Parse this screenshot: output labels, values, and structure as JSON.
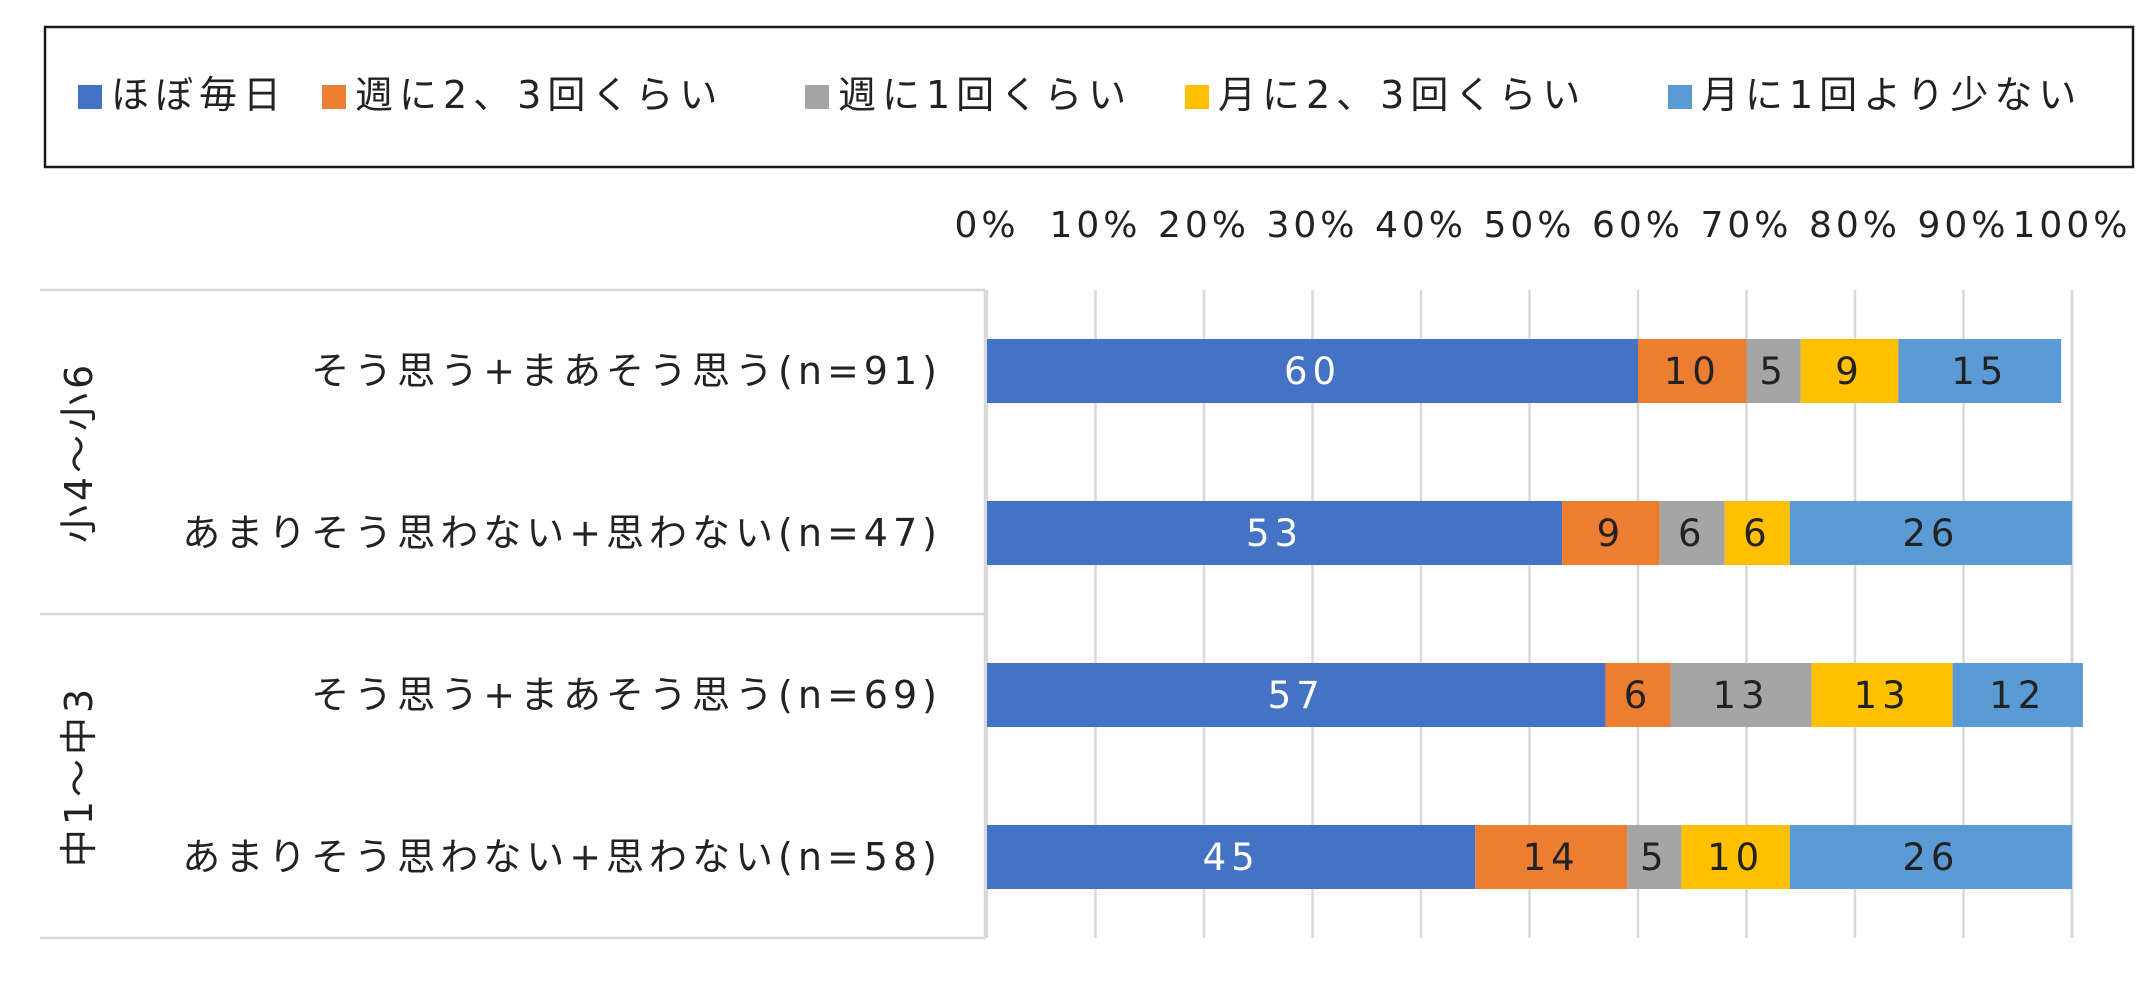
{
  "chart_data": {
    "type": "bar",
    "orientation": "horizontal",
    "stacked": true,
    "percent": true,
    "xlim": [
      0,
      100
    ],
    "x_ticks": [
      "0%",
      "10%",
      "20%",
      "30%",
      "40%",
      "50%",
      "60%",
      "70%",
      "80%",
      "90%",
      "100%"
    ],
    "grid": "vertical",
    "legend_position": "top",
    "groups": [
      {
        "label": "小4〜小6",
        "rows": [
          0,
          1
        ]
      },
      {
        "label": "中1〜中3",
        "rows": [
          2,
          3
        ]
      }
    ],
    "categories": [
      "そう思う+まあそう思う(n=91)",
      "あまりそう思わない+思わない(n=47)",
      "そう思う+まあそう思う(n=69)",
      "あまりそう思わない+思わない(n=58)"
    ],
    "series": [
      {
        "name": "ほぼ毎日",
        "color": "#4472C4",
        "label_color": "#ffffff",
        "values": [
          60,
          53,
          57,
          45
        ]
      },
      {
        "name": "週に2、3回くらい",
        "color": "#ED7D31",
        "label_color": "#222222",
        "values": [
          10,
          9,
          6,
          14
        ]
      },
      {
        "name": "週に1回くらい",
        "color": "#A5A5A5",
        "label_color": "#222222",
        "values": [
          5,
          6,
          13,
          5
        ]
      },
      {
        "name": "月に2、3回くらい",
        "color": "#FFC000",
        "label_color": "#222222",
        "values": [
          9,
          6,
          13,
          10
        ]
      },
      {
        "name": "月に1回より少ない",
        "color": "#5B9BD5",
        "label_color": "#222222",
        "values": [
          15,
          26,
          12,
          26
        ]
      }
    ]
  }
}
